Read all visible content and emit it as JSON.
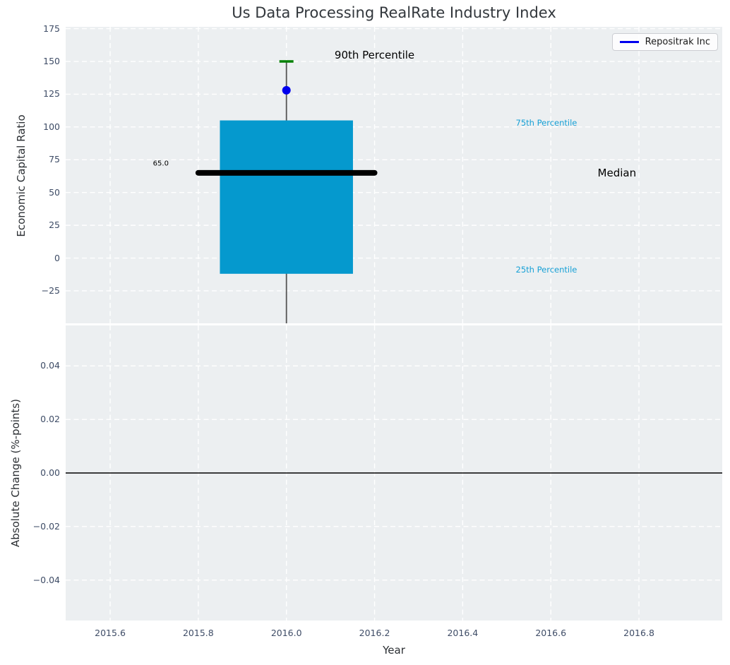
{
  "title": "Us Data Processing RealRate Industry Index",
  "legend": {
    "label": "Repositrak Inc"
  },
  "colors": {
    "axes_background": "#eceff1",
    "grid": "#ffffff",
    "tick_label": "#3e4c66",
    "box_fill": "#0599ce",
    "median_line": "#000000",
    "percentile90_cap": "#008000",
    "company_dot": "#0000ee",
    "whisker": "#555555",
    "zero_line": "#000000",
    "percentile_text": "#16a0d6",
    "dark_text": "#000000"
  },
  "chart_data": [
    {
      "type": "boxplot",
      "subplot": "top",
      "ylabel": "Economic Capital Ratio",
      "xlim": [
        2015.499,
        2016.989
      ],
      "ylim": [
        -49.8,
        176.4
      ],
      "grid": true,
      "legend_position": "upper right",
      "xticks": [
        2015.6,
        2015.8,
        2016.0,
        2016.2,
        2016.4,
        2016.6,
        2016.8
      ],
      "show_xtick_labels": false,
      "yticks": [
        {
          "v": -25,
          "label": "−25"
        },
        {
          "v": 0,
          "label": "0"
        },
        {
          "v": 25,
          "label": "25"
        },
        {
          "v": 50,
          "label": "50"
        },
        {
          "v": 75,
          "label": "75"
        },
        {
          "v": 100,
          "label": "100"
        },
        {
          "v": 125,
          "label": "125"
        },
        {
          "v": 150,
          "label": "150"
        },
        {
          "v": 175,
          "label": "175"
        }
      ],
      "box": {
        "x": 2016.0,
        "q1": -12,
        "median": 65,
        "q3": 105,
        "p90_cap": 150,
        "company_point": 128,
        "whisker_low": -49.8,
        "box_halfwidth": 0.151,
        "median_line_halfwidth": 0.2,
        "cap_halfwidth": 0.016
      },
      "annotations": [
        {
          "text": "90th Percentile",
          "x": 2016.2,
          "y": 155,
          "color": "#000000",
          "size": 15
        },
        {
          "text": "75th Percentile",
          "x": 2016.59,
          "y": 103,
          "color": "#16a0d6",
          "size": 11.5
        },
        {
          "text": "Median",
          "x": 2016.75,
          "y": 65,
          "color": "#000000",
          "size": 15
        },
        {
          "text": "25th Percentile",
          "x": 2016.59,
          "y": -9,
          "color": "#16a0d6",
          "size": 11.5
        },
        {
          "text": "65.0",
          "x": 2015.715,
          "y": 72,
          "color": "#000000",
          "size": 10
        }
      ]
    },
    {
      "type": "line",
      "subplot": "bottom",
      "ylabel": "Absolute Change (%-points)",
      "xlabel": "Year",
      "xlim": [
        2015.499,
        2016.989
      ],
      "ylim": [
        -0.0551,
        0.0551
      ],
      "grid": true,
      "series": [],
      "zero_line": 0.0,
      "xticks": [
        2015.6,
        2015.8,
        2016.0,
        2016.2,
        2016.4,
        2016.6,
        2016.8
      ],
      "xtick_labels": [
        "2015.6",
        "2015.8",
        "2016.0",
        "2016.2",
        "2016.4",
        "2016.6",
        "2016.8"
      ],
      "show_xtick_labels": true,
      "yticks": [
        {
          "v": -0.04,
          "label": "−0.04"
        },
        {
          "v": -0.02,
          "label": "−0.02"
        },
        {
          "v": 0.0,
          "label": "0.00"
        },
        {
          "v": 0.02,
          "label": "0.02"
        },
        {
          "v": 0.04,
          "label": "0.04"
        }
      ]
    }
  ]
}
